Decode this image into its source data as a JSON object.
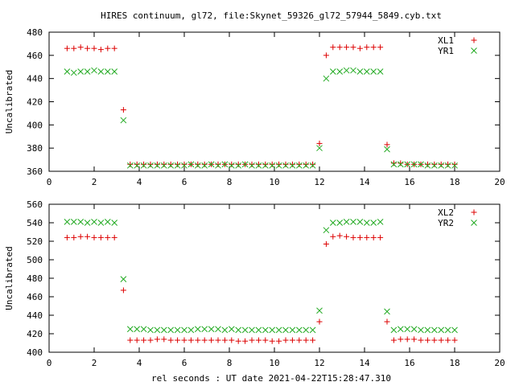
{
  "title": "HIRES continuum, gl72, file:Skynet_59326_gl72_57944_5849.cyb.txt",
  "xlabel": "rel seconds : UT date 2021-04-22T15:28:47.310",
  "colors": {
    "series_a": "#dd0000",
    "series_b": "#22aa22"
  },
  "chart_data": [
    {
      "type": "scatter",
      "ylabel": "Uncalibrated",
      "xlim": [
        0,
        20
      ],
      "ylim": [
        360,
        480
      ],
      "xticks": [
        0,
        2,
        4,
        6,
        8,
        10,
        12,
        14,
        16,
        18,
        20
      ],
      "yticks": [
        360,
        380,
        400,
        420,
        440,
        460,
        480
      ],
      "legend_position": "top-right",
      "grid": false,
      "x": [
        0.8,
        1.1,
        1.4,
        1.7,
        2.0,
        2.3,
        2.6,
        2.9,
        3.3,
        3.6,
        3.9,
        4.2,
        4.5,
        4.8,
        5.1,
        5.4,
        5.7,
        6.0,
        6.3,
        6.6,
        6.9,
        7.2,
        7.5,
        7.8,
        8.1,
        8.4,
        8.7,
        9.0,
        9.3,
        9.6,
        9.9,
        10.2,
        10.5,
        10.8,
        11.1,
        11.4,
        11.7,
        12.0,
        12.3,
        12.6,
        12.9,
        13.2,
        13.5,
        13.8,
        14.1,
        14.4,
        14.7,
        15.0,
        15.3,
        15.6,
        15.9,
        16.2,
        16.5,
        16.8,
        17.1,
        17.4,
        17.7,
        18.0
      ],
      "series": [
        {
          "name": "XL1",
          "marker": "plus",
          "values": [
            466,
            466,
            467,
            466,
            466,
            465,
            466,
            466,
            413,
            366,
            366,
            366,
            366,
            366,
            366,
            366,
            366,
            366,
            366,
            366,
            366,
            366,
            366,
            366,
            366,
            366,
            366,
            366,
            366,
            366,
            366,
            366,
            366,
            366,
            366,
            366,
            366,
            384,
            460,
            467,
            467,
            467,
            467,
            466,
            467,
            467,
            467,
            383,
            367,
            367,
            366,
            366,
            366,
            366,
            366,
            366,
            366,
            366
          ]
        },
        {
          "name": "YR1",
          "marker": "cross",
          "values": [
            446,
            445,
            446,
            446,
            447,
            446,
            446,
            446,
            404,
            365,
            365,
            365,
            365,
            365,
            365,
            365,
            365,
            365,
            366,
            365,
            365,
            366,
            365,
            366,
            365,
            365,
            366,
            365,
            365,
            365,
            365,
            365,
            365,
            365,
            365,
            365,
            365,
            380,
            440,
            446,
            446,
            447,
            447,
            446,
            446,
            446,
            446,
            379,
            366,
            366,
            366,
            366,
            366,
            365,
            365,
            365,
            365,
            365
          ]
        }
      ]
    },
    {
      "type": "scatter",
      "ylabel": "Uncalibrated",
      "xlim": [
        0,
        20
      ],
      "ylim": [
        400,
        560
      ],
      "xticks": [
        0,
        2,
        4,
        6,
        8,
        10,
        12,
        14,
        16,
        18,
        20
      ],
      "yticks": [
        400,
        420,
        440,
        460,
        480,
        500,
        520,
        540,
        560
      ],
      "legend_position": "top-right",
      "grid": false,
      "x": [
        0.8,
        1.1,
        1.4,
        1.7,
        2.0,
        2.3,
        2.6,
        2.9,
        3.3,
        3.6,
        3.9,
        4.2,
        4.5,
        4.8,
        5.1,
        5.4,
        5.7,
        6.0,
        6.3,
        6.6,
        6.9,
        7.2,
        7.5,
        7.8,
        8.1,
        8.4,
        8.7,
        9.0,
        9.3,
        9.6,
        9.9,
        10.2,
        10.5,
        10.8,
        11.1,
        11.4,
        11.7,
        12.0,
        12.3,
        12.6,
        12.9,
        13.2,
        13.5,
        13.8,
        14.1,
        14.4,
        14.7,
        15.0,
        15.3,
        15.6,
        15.9,
        16.2,
        16.5,
        16.8,
        17.1,
        17.4,
        17.7,
        18.0
      ],
      "series": [
        {
          "name": "XL2",
          "marker": "plus",
          "values": [
            524,
            524,
            525,
            525,
            524,
            524,
            524,
            524,
            467,
            413,
            413,
            413,
            413,
            414,
            414,
            413,
            413,
            413,
            413,
            413,
            413,
            413,
            413,
            413,
            413,
            412,
            412,
            413,
            413,
            413,
            412,
            412,
            413,
            413,
            413,
            413,
            413,
            433,
            517,
            525,
            526,
            525,
            524,
            524,
            524,
            524,
            524,
            433,
            413,
            414,
            414,
            414,
            413,
            413,
            413,
            413,
            413,
            413
          ]
        },
        {
          "name": "YR2",
          "marker": "cross",
          "values": [
            541,
            541,
            541,
            540,
            541,
            540,
            541,
            540,
            479,
            425,
            425,
            425,
            424,
            424,
            424,
            424,
            424,
            424,
            424,
            425,
            425,
            425,
            425,
            424,
            425,
            424,
            424,
            424,
            424,
            424,
            424,
            424,
            424,
            424,
            424,
            424,
            424,
            445,
            532,
            540,
            540,
            541,
            541,
            541,
            540,
            540,
            541,
            444,
            424,
            425,
            425,
            425,
            424,
            424,
            424,
            424,
            424,
            424
          ]
        }
      ]
    }
  ]
}
